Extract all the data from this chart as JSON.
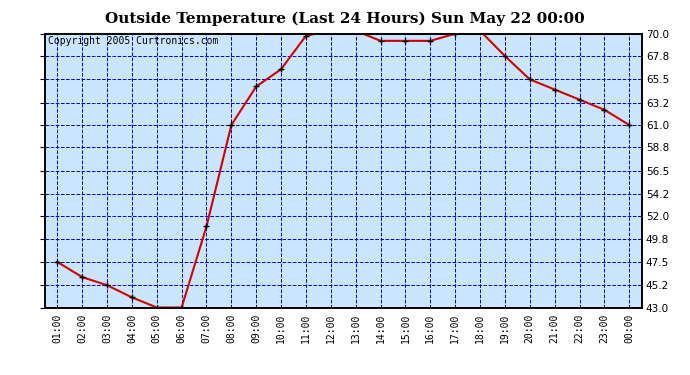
{
  "title": "Outside Temperature (Last 24 Hours) Sun May 22 00:00",
  "copyright": "Copyright 2005 Curtronics.com",
  "x_labels": [
    "01:00",
    "02:00",
    "03:00",
    "04:00",
    "05:00",
    "06:00",
    "07:00",
    "08:00",
    "09:00",
    "10:00",
    "11:00",
    "12:00",
    "13:00",
    "14:00",
    "15:00",
    "16:00",
    "17:00",
    "18:00",
    "19:00",
    "20:00",
    "21:00",
    "22:00",
    "23:00",
    "00:00"
  ],
  "y_values": [
    47.5,
    46.0,
    45.2,
    44.0,
    43.0,
    43.0,
    51.0,
    61.0,
    64.8,
    66.5,
    69.8,
    70.3,
    70.3,
    69.3,
    69.3,
    69.3,
    70.0,
    70.3,
    67.8,
    65.5,
    64.5,
    63.5,
    62.5,
    61.0
  ],
  "ylim": [
    43.0,
    70.0
  ],
  "yticks": [
    43.0,
    45.2,
    47.5,
    49.8,
    52.0,
    54.2,
    56.5,
    58.8,
    61.0,
    63.2,
    65.5,
    67.8,
    70.0
  ],
  "line_color": "#cc0000",
  "marker_color": "#000000",
  "bg_color": "#cce5ff",
  "grid_color": "#0000cc",
  "title_fontsize": 11,
  "copyright_fontsize": 7,
  "tick_fontsize": 7,
  "ytick_fontsize": 7.5
}
